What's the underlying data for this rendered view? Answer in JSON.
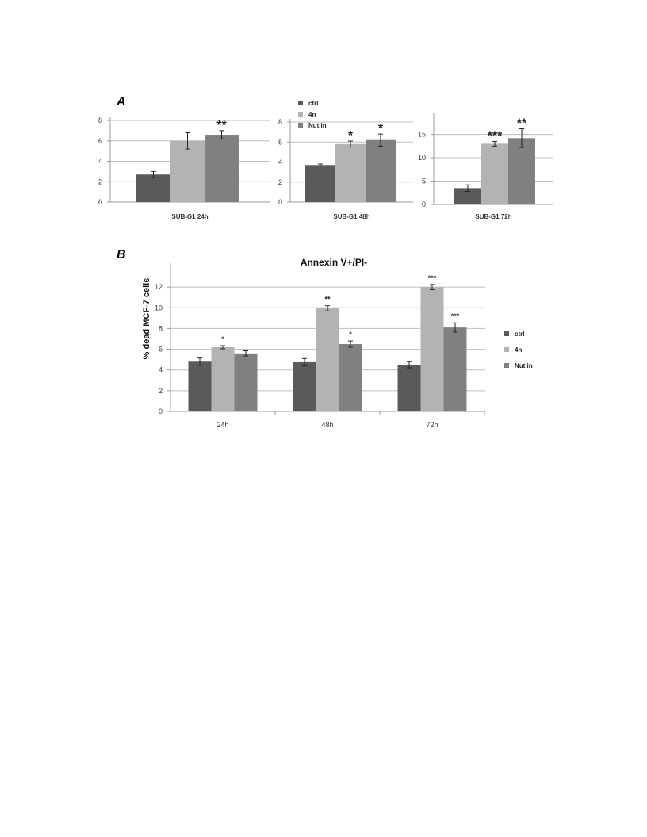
{
  "panel_labels": {
    "a": "A",
    "b": "B"
  },
  "legend": {
    "labels": [
      "ctrl",
      "4n",
      "Nutlin"
    ],
    "colors": [
      "#5a5a5a",
      "#b3b3b3",
      "#808080"
    ]
  },
  "chart_data": [
    {
      "type": "bar",
      "categories": [
        "SUB-G1 24h"
      ],
      "series": [
        {
          "name": "ctrl",
          "values": [
            2.7
          ],
          "errors": [
            0.3
          ],
          "sig": [
            ""
          ]
        },
        {
          "name": "4n",
          "values": [
            6.0
          ],
          "errors": [
            0.8
          ],
          "sig": [
            ""
          ]
        },
        {
          "name": "Nutlin",
          "values": [
            6.6
          ],
          "errors": [
            0.4
          ],
          "sig": [
            "**"
          ]
        }
      ],
      "ylim": [
        0,
        8
      ],
      "yticks": [
        0,
        2,
        4,
        6,
        8
      ],
      "grid": true,
      "xlabel": "SUB-G1 24h"
    },
    {
      "type": "bar",
      "categories": [
        "SUB-G1 48h"
      ],
      "series": [
        {
          "name": "ctrl",
          "values": [
            3.7
          ],
          "errors": [
            0.1
          ],
          "sig": [
            ""
          ]
        },
        {
          "name": "4n",
          "values": [
            5.8
          ],
          "errors": [
            0.3
          ],
          "sig": [
            "*"
          ]
        },
        {
          "name": "Nutlin",
          "values": [
            6.2
          ],
          "errors": [
            0.6
          ],
          "sig": [
            "*"
          ]
        }
      ],
      "ylim": [
        0,
        8
      ],
      "yticks": [
        0,
        2,
        4,
        6,
        8
      ],
      "grid": true,
      "xlabel": "SUB-G1 48h",
      "legend_position": "top-left"
    },
    {
      "type": "bar",
      "categories": [
        "SUB-G1 72h"
      ],
      "series": [
        {
          "name": "ctrl",
          "values": [
            3.5
          ],
          "errors": [
            0.7
          ],
          "sig": [
            ""
          ]
        },
        {
          "name": "4n",
          "values": [
            13.0
          ],
          "errors": [
            0.5
          ],
          "sig": [
            "***"
          ]
        },
        {
          "name": "Nutlin",
          "values": [
            14.2
          ],
          "errors": [
            2.0
          ],
          "sig": [
            "**"
          ]
        }
      ],
      "ylim": [
        0,
        19
      ],
      "yticks": [
        0,
        5,
        10,
        15
      ],
      "grid": true,
      "xlabel": "SUB-G1 72h"
    },
    {
      "type": "bar",
      "title": "Annexin V+/PI-",
      "ylabel": "% dead MCF-7 cells",
      "categories": [
        "24h",
        "48h",
        "72h"
      ],
      "series": [
        {
          "name": "ctrl",
          "values": [
            4.8,
            4.75,
            4.5
          ],
          "errors": [
            0.35,
            0.35,
            0.3
          ],
          "sig": [
            "",
            "",
            ""
          ]
        },
        {
          "name": "4n",
          "values": [
            6.2,
            9.95,
            12.0
          ],
          "errors": [
            0.15,
            0.25,
            0.25
          ],
          "sig": [
            "*",
            "**",
            "***"
          ]
        },
        {
          "name": "Nutlin",
          "values": [
            5.6,
            6.5,
            8.1
          ],
          "errors": [
            0.25,
            0.3,
            0.45
          ],
          "sig": [
            "",
            "*",
            "***"
          ]
        }
      ],
      "ylim": [
        0,
        14
      ],
      "yticks": [
        0,
        2,
        4,
        6,
        8,
        10,
        12
      ],
      "grid": true,
      "legend_position": "right"
    }
  ]
}
